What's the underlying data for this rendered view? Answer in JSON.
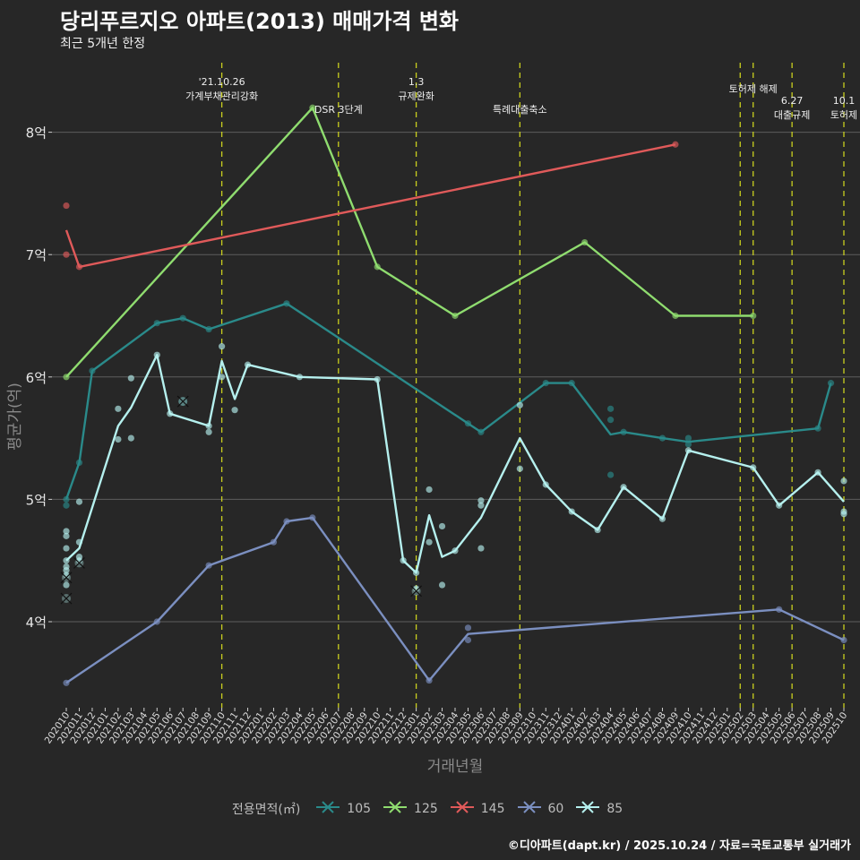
{
  "title": "당리푸르지오 아파트(2013) 매매가격 변화",
  "subtitle": "최근 5개년 한정",
  "caption": "©디아파트(dapt.kr) / 2025.10.24 / 자료=국토교통부 실거래가",
  "legend": {
    "title": "전용면적(㎡)",
    "items": [
      {
        "label": "105",
        "color": "#2a8a8a"
      },
      {
        "label": "125",
        "color": "#8fdc6f"
      },
      {
        "label": "145",
        "color": "#e05a5a"
      },
      {
        "label": "60",
        "color": "#7b8fc0"
      },
      {
        "label": "85",
        "color": "#b5f0ee"
      }
    ]
  },
  "chart_data": {
    "type": "line",
    "title": "당리푸르지오 아파트(2013) 매매가격 변화",
    "xlabel": "거래년월",
    "ylabel": "평균가(억)",
    "ylim": [
      3.4,
      8.6
    ],
    "yticks": [
      {
        "value": 4,
        "label": "4억"
      },
      {
        "value": 5,
        "label": "5억"
      },
      {
        "value": 6,
        "label": "6억"
      },
      {
        "value": 7,
        "label": "7억"
      },
      {
        "value": 8,
        "label": "8억"
      }
    ],
    "categories": [
      "202010",
      "202011",
      "202012",
      "202101",
      "202102",
      "202103",
      "202104",
      "202105",
      "202106",
      "202107",
      "202108",
      "202109",
      "202110",
      "202111",
      "202112",
      "202201",
      "202202",
      "202203",
      "202204",
      "202205",
      "202206",
      "202207",
      "202208",
      "202209",
      "202210",
      "202211",
      "202212",
      "202301",
      "202302",
      "202303",
      "202304",
      "202305",
      "202306",
      "202307",
      "202308",
      "202309",
      "202310",
      "202311",
      "202312",
      "202401",
      "202402",
      "202403",
      "202404",
      "202405",
      "202406",
      "202407",
      "202408",
      "202409",
      "202410",
      "202411",
      "202412",
      "202501",
      "202502",
      "202503",
      "202504",
      "202505",
      "202506",
      "202507",
      "202508",
      "202509",
      "202510"
    ],
    "events": [
      {
        "index": 12,
        "lines": [
          "'21.10.26",
          "가계부채관리강화"
        ],
        "row": 1
      },
      {
        "index": 21,
        "lines": [
          "DSR 3단계"
        ],
        "row": 2
      },
      {
        "index": 27,
        "lines": [
          "1.3",
          "규제완화"
        ],
        "row": 1
      },
      {
        "index": 35,
        "lines": [
          "특례대출축소"
        ],
        "row": 2
      },
      {
        "index": 52,
        "lines": [],
        "row": 0
      },
      {
        "index": 53,
        "lines": [
          "토허제 해제"
        ],
        "row": 1
      },
      {
        "index": 56,
        "lines": [
          "6.27",
          "대출규제"
        ],
        "row": 2
      },
      {
        "index": 60,
        "lines": [
          "10.1",
          "토허제"
        ],
        "row": 2
      }
    ],
    "series": [
      {
        "name": "105",
        "color": "#2a8a8a",
        "line": [
          [
            0,
            5.0
          ],
          [
            1,
            5.3
          ],
          [
            2,
            6.05
          ],
          [
            7,
            6.44
          ],
          [
            9,
            6.48
          ],
          [
            11,
            6.39
          ],
          [
            17,
            6.6
          ],
          [
            31,
            5.62
          ],
          [
            32,
            5.55
          ],
          [
            37,
            5.95
          ],
          [
            39,
            5.95
          ],
          [
            42,
            5.53
          ],
          [
            43,
            5.55
          ],
          [
            46,
            5.5
          ],
          [
            48,
            5.47
          ],
          [
            58,
            5.58
          ],
          [
            59,
            5.95
          ]
        ],
        "points": [
          [
            0,
            5.0
          ],
          [
            0,
            4.95
          ],
          [
            1,
            5.3
          ],
          [
            2,
            6.05
          ],
          [
            7,
            6.44
          ],
          [
            9,
            6.48
          ],
          [
            11,
            6.39
          ],
          [
            17,
            6.6
          ],
          [
            31,
            5.62
          ],
          [
            32,
            5.55
          ],
          [
            37,
            5.95
          ],
          [
            39,
            5.95
          ],
          [
            42,
            5.74
          ],
          [
            42,
            5.65
          ],
          [
            42,
            5.2
          ],
          [
            43,
            5.55
          ],
          [
            46,
            5.5
          ],
          [
            48,
            5.5
          ],
          [
            48,
            5.45
          ],
          [
            58,
            5.58
          ],
          [
            59,
            5.95
          ]
        ],
        "crosses": [
          [
            9,
            5.8
          ]
        ]
      },
      {
        "name": "125",
        "color": "#8fdc6f",
        "line": [
          [
            0,
            6.0
          ],
          [
            19,
            8.2
          ],
          [
            24,
            6.9
          ],
          [
            30,
            6.5
          ],
          [
            40,
            7.1
          ],
          [
            47,
            6.5
          ],
          [
            53,
            6.5
          ]
        ],
        "points": [
          [
            0,
            6.0
          ],
          [
            19,
            8.2
          ],
          [
            24,
            6.9
          ],
          [
            30,
            6.5
          ],
          [
            40,
            7.1
          ],
          [
            47,
            6.5
          ],
          [
            53,
            6.5
          ]
        ],
        "crosses": []
      },
      {
        "name": "145",
        "color": "#e05a5a",
        "line": [
          [
            0,
            7.2
          ],
          [
            1,
            6.9
          ],
          [
            47,
            7.9
          ]
        ],
        "points": [
          [
            0,
            7.4
          ],
          [
            0,
            7.0
          ],
          [
            1,
            6.9
          ],
          [
            47,
            7.9
          ]
        ],
        "crosses": []
      },
      {
        "name": "60",
        "color": "#7b8fc0",
        "line": [
          [
            0,
            3.5
          ],
          [
            7,
            4.0
          ],
          [
            11,
            4.46
          ],
          [
            16,
            4.65
          ],
          [
            17,
            4.82
          ],
          [
            19,
            4.85
          ],
          [
            28,
            3.52
          ],
          [
            31,
            3.9
          ],
          [
            55,
            4.1
          ],
          [
            60,
            3.85
          ]
        ],
        "points": [
          [
            0,
            3.5
          ],
          [
            7,
            4.0
          ],
          [
            11,
            4.46
          ],
          [
            16,
            4.65
          ],
          [
            17,
            4.82
          ],
          [
            19,
            4.85
          ],
          [
            28,
            3.52
          ],
          [
            31,
            3.95
          ],
          [
            31,
            3.85
          ],
          [
            55,
            4.1
          ],
          [
            60,
            3.85
          ]
        ],
        "crosses": []
      },
      {
        "name": "85",
        "color": "#b5f0ee",
        "line": [
          [
            0,
            4.5
          ],
          [
            1,
            4.6
          ],
          [
            4,
            5.6
          ],
          [
            5,
            5.75
          ],
          [
            7,
            6.18
          ],
          [
            8,
            5.7
          ],
          [
            11,
            5.6
          ],
          [
            12,
            6.13
          ],
          [
            13,
            5.82
          ],
          [
            14,
            6.1
          ],
          [
            18,
            6.0
          ],
          [
            24,
            5.98
          ],
          [
            26,
            4.5
          ],
          [
            27,
            4.4
          ],
          [
            28,
            4.87
          ],
          [
            29,
            4.53
          ],
          [
            30,
            4.58
          ],
          [
            32,
            4.85
          ],
          [
            35,
            5.5
          ],
          [
            37,
            5.12
          ],
          [
            39,
            4.9
          ],
          [
            41,
            4.75
          ],
          [
            43,
            5.1
          ],
          [
            46,
            4.84
          ],
          [
            48,
            5.4
          ],
          [
            53,
            5.26
          ],
          [
            55,
            4.95
          ],
          [
            58,
            5.22
          ],
          [
            60,
            4.98
          ]
        ],
        "points": [
          [
            0,
            4.45
          ],
          [
            0,
            4.42
          ],
          [
            0,
            4.74
          ],
          [
            0,
            4.7
          ],
          [
            0,
            4.6
          ],
          [
            0,
            4.5
          ],
          [
            0,
            4.38
          ],
          [
            0,
            4.3
          ],
          [
            1,
            4.98
          ],
          [
            1,
            4.65
          ],
          [
            1,
            4.53
          ],
          [
            1,
            4.5
          ],
          [
            4,
            5.74
          ],
          [
            4,
            5.49
          ],
          [
            5,
            5.5
          ],
          [
            5,
            5.99
          ],
          [
            7,
            6.18
          ],
          [
            8,
            5.7
          ],
          [
            11,
            5.6
          ],
          [
            11,
            5.55
          ],
          [
            12,
            6.25
          ],
          [
            12,
            6.0
          ],
          [
            13,
            5.73
          ],
          [
            14,
            6.1
          ],
          [
            18,
            6.0
          ],
          [
            24,
            5.98
          ],
          [
            26,
            4.5
          ],
          [
            27,
            4.4
          ],
          [
            27,
            4.27
          ],
          [
            28,
            5.08
          ],
          [
            28,
            4.65
          ],
          [
            29,
            4.78
          ],
          [
            29,
            4.3
          ],
          [
            30,
            4.58
          ],
          [
            32,
            4.99
          ],
          [
            32,
            4.95
          ],
          [
            32,
            4.6
          ],
          [
            35,
            5.77
          ],
          [
            35,
            5.25
          ],
          [
            37,
            5.12
          ],
          [
            39,
            4.9
          ],
          [
            41,
            4.75
          ],
          [
            43,
            5.1
          ],
          [
            46,
            4.84
          ],
          [
            48,
            5.4
          ],
          [
            53,
            5.26
          ],
          [
            55,
            4.95
          ],
          [
            58,
            5.22
          ],
          [
            60,
            5.15
          ],
          [
            60,
            4.9
          ],
          [
            60,
            4.88
          ]
        ],
        "crosses": [
          [
            0,
            4.36
          ],
          [
            0,
            4.19
          ],
          [
            1,
            4.48
          ],
          [
            9,
            5.8
          ],
          [
            27,
            4.25
          ]
        ]
      }
    ]
  }
}
